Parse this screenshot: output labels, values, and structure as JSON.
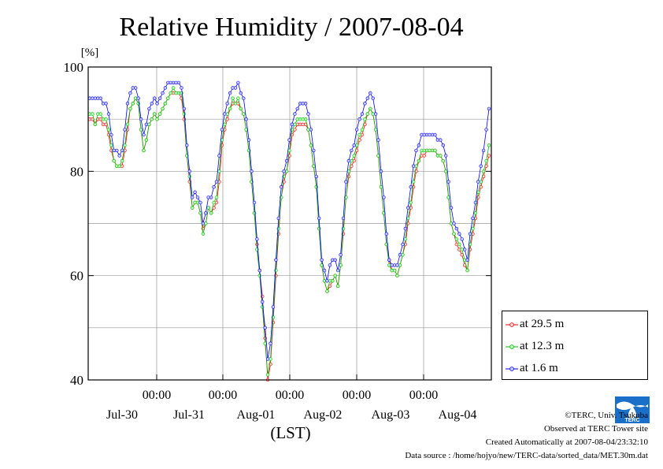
{
  "chart_data": {
    "type": "line",
    "title": "Relative Humidity / 2007-08-04",
    "ylabel": "[%]",
    "xlabel": "(LST)",
    "ylim": [
      40,
      100
    ],
    "yticks": [
      40,
      60,
      80,
      100
    ],
    "time_ticks": [
      "00:00",
      "00:00",
      "00:00",
      "00:00",
      "00:00"
    ],
    "date_labels": [
      "Jul-30",
      "Jul-31",
      "Aug-01",
      "Aug-02",
      "Aug-03",
      "Aug-04"
    ],
    "grid": true,
    "legend_position": "right-bottom",
    "series": [
      {
        "name": "at 29.5 m",
        "color": "#ff0000",
        "marker_fill": "#ffd0d0",
        "values": [
          90,
          90,
          89,
          90,
          90,
          89,
          89,
          87,
          84,
          82,
          81,
          81,
          81,
          84,
          88,
          92,
          93,
          94,
          93,
          88,
          84,
          86,
          89,
          90,
          91,
          90,
          91,
          92,
          93,
          94,
          95,
          95,
          95,
          95,
          94,
          90,
          83,
          78,
          73,
          74,
          74,
          72,
          69,
          70,
          73,
          72,
          73,
          74,
          78,
          85,
          88,
          90,
          92,
          93,
          93,
          93,
          92,
          91,
          88,
          84,
          78,
          72,
          66,
          61,
          56,
          48,
          40,
          43,
          51,
          60,
          68,
          75,
          78,
          80,
          83,
          87,
          88,
          89,
          89,
          89,
          89,
          88,
          85,
          81,
          77,
          69,
          62,
          59,
          57,
          58,
          59,
          60,
          58,
          62,
          68,
          75,
          79,
          81,
          82,
          84,
          86,
          87,
          89,
          91,
          92,
          91,
          88,
          83,
          77,
          72,
          66,
          63,
          61,
          61,
          60,
          62,
          64,
          66,
          70,
          73,
          77,
          80,
          82,
          83,
          83,
          84,
          84,
          84,
          84,
          83,
          83,
          82,
          80,
          75,
          70,
          68,
          66,
          65,
          64,
          62,
          61,
          65,
          68,
          71,
          75,
          77,
          79,
          81,
          83
        ]
      },
      {
        "name": "at 12.3 m",
        "color": "#00bb00",
        "marker_fill": "#b8ffb8",
        "values": [
          91,
          91,
          89,
          91,
          91,
          90,
          90,
          88,
          85,
          82,
          81,
          81,
          82,
          85,
          89,
          92,
          93,
          94,
          93,
          88,
          84,
          86,
          89,
          90,
          91,
          90,
          91,
          92,
          93,
          94,
          95,
          96,
          95,
          95,
          95,
          91,
          83,
          79,
          73,
          74,
          74,
          72,
          68,
          70,
          73,
          72,
          74,
          75,
          80,
          86,
          89,
          91,
          92,
          94,
          93,
          94,
          92,
          91,
          88,
          84,
          78,
          72,
          65,
          60,
          54,
          47,
          41,
          44,
          52,
          61,
          69,
          75,
          79,
          80,
          84,
          88,
          89,
          90,
          90,
          90,
          90,
          88,
          85,
          81,
          77,
          69,
          62,
          59,
          57,
          59,
          59,
          60,
          58,
          62,
          69,
          75,
          80,
          82,
          83,
          85,
          87,
          88,
          90,
          91,
          92,
          91,
          88,
          83,
          77,
          72,
          66,
          62,
          61,
          61,
          60,
          62,
          64,
          67,
          71,
          74,
          78,
          81,
          82,
          84,
          84,
          84,
          84,
          84,
          84,
          83,
          83,
          82,
          80,
          75,
          70,
          68,
          67,
          66,
          65,
          63,
          61,
          66,
          69,
          72,
          76,
          78,
          80,
          82,
          85
        ]
      },
      {
        "name": "at 1.6 m",
        "color": "#0000ff",
        "marker_fill": "#c8c8ff",
        "values": [
          94,
          94,
          94,
          94,
          94,
          93,
          93,
          91,
          87,
          84,
          84,
          83,
          84,
          88,
          93,
          95,
          96,
          96,
          94,
          90,
          87,
          89,
          92,
          93,
          94,
          93,
          94,
          95,
          96,
          97,
          97,
          97,
          97,
          97,
          96,
          92,
          85,
          80,
          75,
          76,
          75,
          74,
          70,
          72,
          75,
          75,
          77,
          78,
          83,
          88,
          91,
          93,
          95,
          96,
          96,
          97,
          95,
          94,
          90,
          86,
          80,
          74,
          67,
          61,
          55,
          50,
          44,
          47,
          54,
          63,
          71,
          77,
          80,
          82,
          86,
          89,
          91,
          92,
          93,
          93,
          93,
          91,
          88,
          84,
          79,
          71,
          63,
          61,
          59,
          62,
          63,
          63,
          61,
          64,
          71,
          78,
          82,
          84,
          85,
          88,
          90,
          91,
          93,
          94,
          95,
          94,
          91,
          86,
          80,
          75,
          68,
          63,
          62,
          62,
          62,
          64,
          66,
          69,
          73,
          77,
          81,
          84,
          85,
          87,
          87,
          87,
          87,
          87,
          87,
          86,
          86,
          85,
          83,
          78,
          73,
          70,
          69,
          68,
          67,
          65,
          63,
          68,
          71,
          74,
          78,
          81,
          84,
          88,
          92
        ]
      }
    ]
  },
  "credits": {
    "copyright": "©TERC, Univ. Tsukuba",
    "site": "Observed at TERC Tower site",
    "created": "Created Automatically at 2007-08-04/23:32:10",
    "source": "Data source : /home/hojyo/new/TERC-data/sorted_data/MET.30m.dat"
  },
  "logo": {
    "text": "TERC"
  }
}
